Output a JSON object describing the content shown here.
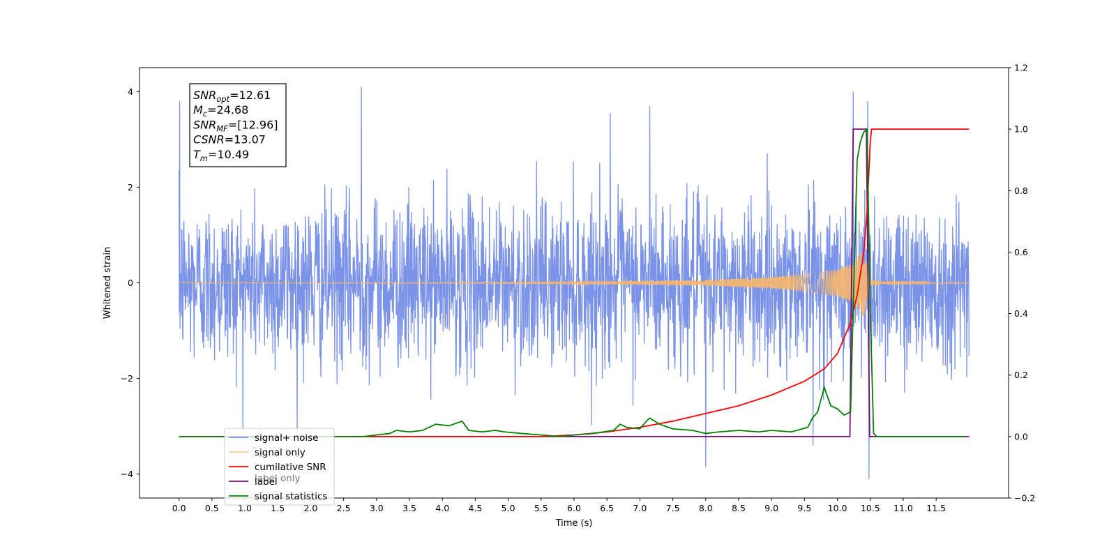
{
  "chart_data": {
    "type": "line",
    "xlabel": "Time (s)",
    "ylabel": "Whitened strain",
    "xlim": [
      -0.6,
      12.6
    ],
    "ylim": [
      -4.5,
      4.5
    ],
    "y2lim": [
      -0.2,
      1.2
    ],
    "x_ticks": [
      "0.0",
      "0.5",
      "1.0",
      "1.5",
      "2.0",
      "2.5",
      "3.0",
      "3.5",
      "4.0",
      "4.5",
      "5.0",
      "5.5",
      "6.0",
      "6.5",
      "7.0",
      "7.5",
      "8.0",
      "8.5",
      "9.0",
      "9.5",
      "10.0",
      "10.5",
      "11.0",
      "11.5"
    ],
    "y_ticks": [
      -4,
      -2,
      0,
      2,
      4
    ],
    "y2_ticks": [
      "−0.2",
      "0.0",
      "0.2",
      "0.4",
      "0.6",
      "0.8",
      "1.0",
      "1.2"
    ],
    "grid": false,
    "legend_position": "lower-left",
    "stats_box": {
      "lines": [
        {
          "sym": "SNR",
          "sub": "opt",
          "value": "=12.61"
        },
        {
          "sym": "M",
          "sub": "c",
          "value": "=24.68"
        },
        {
          "sym": "SNR",
          "sub": "MF",
          "value": "=[12.96]"
        },
        {
          "sym": "CSNR",
          "sub": "",
          "value": "=13.07"
        },
        {
          "sym": "T",
          "sub": "m",
          "value": "=10.49"
        }
      ]
    },
    "series": [
      {
        "name": "signal+ noise",
        "color": "#7a93e8",
        "axis": "left",
        "sample_rate_hz": 200,
        "x_range": [
          0,
          12
        ],
        "noise_envelope_typical": [
          -2.0,
          2.0
        ],
        "notable_peaks": [
          [
            0.01,
            3.8
          ],
          [
            2.77,
            4.1
          ],
          [
            9.63,
            -3.4
          ],
          [
            10.24,
            4.0
          ],
          [
            10.46,
            3.8
          ],
          [
            10.48,
            -4.1
          ],
          [
            7.15,
            3.7
          ],
          [
            6.55,
            3.55
          ],
          [
            8.0,
            -3.85
          ]
        ]
      },
      {
        "name": "signal only",
        "color": "#f7b76a",
        "axis": "left",
        "description_points": {
          "x": [
            0,
            6,
            8,
            9,
            9.5,
            10,
            10.2,
            10.4,
            10.5,
            12
          ],
          "amplitude": [
            0.0,
            0.02,
            0.06,
            0.12,
            0.18,
            0.28,
            0.4,
            0.7,
            0.05,
            0.0
          ]
        }
      },
      {
        "name": "cumilative SNR",
        "color": "#ff0000",
        "axis": "right",
        "x": [
          0,
          5.5,
          6,
          6.5,
          7,
          7.5,
          8,
          8.5,
          9,
          9.5,
          9.8,
          10,
          10.2,
          10.3,
          10.4,
          10.45,
          10.5,
          10.52,
          12
        ],
        "values": [
          0.0,
          0.0,
          0.005,
          0.015,
          0.03,
          0.05,
          0.075,
          0.1,
          0.135,
          0.18,
          0.22,
          0.27,
          0.37,
          0.46,
          0.6,
          0.73,
          0.96,
          1.0,
          1.0
        ]
      },
      {
        "name": "label",
        "color": "#7a0a7a",
        "axis": "right",
        "x": [
          0,
          10.19,
          10.24,
          10.44,
          10.49,
          12
        ],
        "values": [
          0.0,
          0.0,
          1.0,
          1.0,
          0.0,
          0.0
        ]
      },
      {
        "name": "signal statistics",
        "color": "#008000",
        "axis": "right",
        "x": [
          0,
          2.8,
          3.0,
          3.2,
          3.3,
          3.5,
          3.7,
          3.9,
          4.1,
          4.3,
          4.4,
          4.6,
          4.8,
          4.95,
          5.2,
          5.5,
          5.8,
          6.0,
          6.3,
          6.6,
          6.7,
          6.8,
          7.0,
          7.1,
          7.15,
          7.3,
          7.5,
          7.8,
          8.0,
          8.2,
          8.5,
          8.8,
          9.0,
          9.3,
          9.55,
          9.62,
          9.7,
          9.8,
          9.9,
          10.0,
          10.1,
          10.2,
          10.25,
          10.3,
          10.35,
          10.4,
          10.45,
          10.5,
          10.55,
          10.6,
          11.5,
          11.94
        ],
        "values": [
          0.0,
          0.0,
          0.005,
          0.01,
          0.02,
          0.015,
          0.02,
          0.04,
          0.035,
          0.05,
          0.02,
          0.015,
          0.02,
          0.015,
          0.01,
          0.005,
          0.0,
          0.005,
          0.01,
          0.02,
          0.04,
          0.03,
          0.025,
          0.05,
          0.06,
          0.04,
          0.025,
          0.02,
          0.01,
          0.015,
          0.02,
          0.015,
          0.02,
          0.015,
          0.03,
          0.06,
          0.08,
          0.16,
          0.1,
          0.09,
          0.07,
          0.08,
          0.5,
          0.9,
          0.96,
          0.99,
          1.0,
          0.4,
          0.01,
          0.0,
          0.0,
          0.0
        ]
      }
    ],
    "legend_overlap_hint": "label only"
  }
}
